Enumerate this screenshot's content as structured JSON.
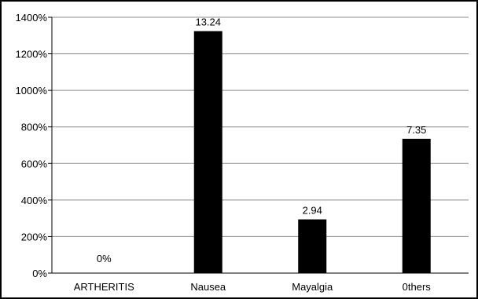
{
  "chart_data": {
    "type": "bar",
    "categories": [
      "ARTHERITIS",
      "Nausea",
      "Mayalgia",
      "Others"
    ],
    "category_labels": [
      "ARTHERITIS",
      "Nausea",
      "Mayalgia",
      "0thers"
    ],
    "values": [
      0,
      1324,
      294,
      735
    ],
    "data_labels": [
      "0%",
      "13.24",
      "2.94",
      "7.35"
    ],
    "y_ticks": [
      "0%",
      "200%",
      "400%",
      "600%",
      "800%",
      "1000%",
      "1200%",
      "1400%"
    ],
    "ylim": [
      0,
      1400
    ],
    "grid": true,
    "legend": "none",
    "title": "",
    "xlabel": "",
    "ylabel": "",
    "bar_color": "#000000",
    "grid_color": "#8c8c8c"
  }
}
